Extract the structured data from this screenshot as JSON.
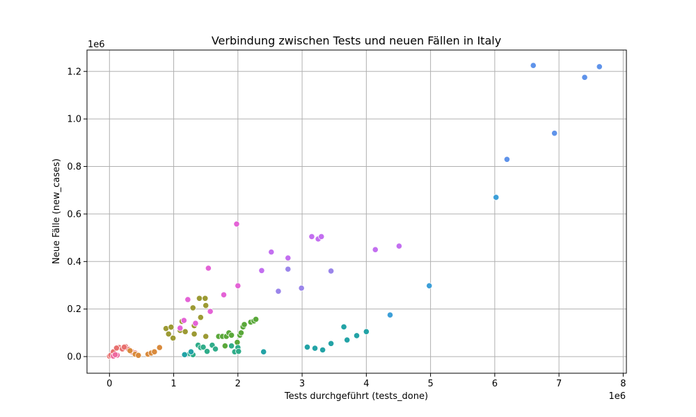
{
  "chart_data": {
    "type": "scatter",
    "title": "Verbindung zwischen Tests und neuen Fällen in Italy",
    "xlabel": "Tests durchgeführt (tests_done)",
    "ylabel": "Neue Fälle (new_cases)",
    "x_scale_label": "1e6",
    "y_scale_label": "1e6",
    "xlim": [
      -350000,
      8050000
    ],
    "ylim": [
      -70000,
      1290000
    ],
    "x_ticks": [
      0,
      1000000,
      2000000,
      3000000,
      4000000,
      5000000,
      6000000,
      7000000,
      8000000
    ],
    "x_tick_labels": [
      "0",
      "1",
      "2",
      "3",
      "4",
      "5",
      "6",
      "7",
      "8"
    ],
    "y_ticks": [
      0,
      200000,
      400000,
      600000,
      800000,
      1000000,
      1200000
    ],
    "y_tick_labels": [
      "0.0",
      "0.2",
      "0.4",
      "0.6",
      "0.8",
      "1.0",
      "1.2"
    ],
    "grid": true,
    "legend": false,
    "series": [
      {
        "color": "#e8706f",
        "points": [
          [
            0,
            2000
          ],
          [
            20000,
            6000
          ],
          [
            60000,
            20000
          ],
          [
            100000,
            8000
          ],
          [
            150000,
            38000
          ],
          [
            200000,
            32000
          ],
          [
            250000,
            42000
          ],
          [
            300000,
            30000
          ],
          [
            350000,
            20000
          ],
          [
            400000,
            15000
          ],
          [
            110000,
            36000
          ],
          [
            230000,
            40000
          ]
        ]
      },
      {
        "color": "#d98a3c",
        "points": [
          [
            320000,
            25000
          ],
          [
            400000,
            10000
          ],
          [
            450000,
            5000
          ],
          [
            600000,
            10000
          ],
          [
            650000,
            15000
          ],
          [
            700000,
            20000
          ],
          [
            780000,
            38000
          ]
        ]
      },
      {
        "color": "#9c9a34",
        "points": [
          [
            880000,
            118000
          ],
          [
            920000,
            95000
          ],
          [
            960000,
            124000
          ],
          [
            990000,
            78000
          ],
          [
            1100000,
            110000
          ],
          [
            1130000,
            148000
          ],
          [
            1180000,
            105000
          ],
          [
            1300000,
            205000
          ],
          [
            1320000,
            130000
          ],
          [
            1320000,
            95000
          ],
          [
            1420000,
            165000
          ],
          [
            1500000,
            215000
          ],
          [
            1500000,
            85000
          ],
          [
            1400000,
            245000
          ],
          [
            1490000,
            245000
          ]
        ]
      },
      {
        "color": "#5aa83a",
        "points": [
          [
            1700000,
            85000
          ],
          [
            1760000,
            85000
          ],
          [
            1800000,
            45000
          ],
          [
            1820000,
            85000
          ],
          [
            1860000,
            100000
          ],
          [
            1900000,
            90000
          ],
          [
            1990000,
            60000
          ],
          [
            2030000,
            90000
          ],
          [
            2050000,
            100000
          ],
          [
            2080000,
            125000
          ],
          [
            2100000,
            135000
          ],
          [
            2200000,
            145000
          ],
          [
            2250000,
            150000
          ],
          [
            2280000,
            157000
          ]
        ]
      },
      {
        "color": "#30ad8a",
        "points": [
          [
            1380000,
            48000
          ],
          [
            1420000,
            38000
          ],
          [
            1460000,
            40000
          ],
          [
            1520000,
            22000
          ],
          [
            1600000,
            48000
          ],
          [
            1650000,
            32000
          ],
          [
            1900000,
            45000
          ],
          [
            1950000,
            20000
          ],
          [
            2000000,
            38000
          ],
          [
            2010000,
            22000
          ],
          [
            1250000,
            12000
          ],
          [
            1300000,
            8000
          ]
        ]
      },
      {
        "color": "#23a3a6",
        "points": [
          [
            1170000,
            8000
          ],
          [
            1270000,
            20000
          ],
          [
            2400000,
            20000
          ],
          [
            3080000,
            40000
          ],
          [
            3200000,
            35000
          ],
          [
            3320000,
            28000
          ],
          [
            3450000,
            55000
          ],
          [
            3650000,
            125000
          ],
          [
            3700000,
            70000
          ],
          [
            3850000,
            88000
          ],
          [
            4000000,
            105000
          ]
        ]
      },
      {
        "color": "#3d9fd8",
        "points": [
          [
            4370000,
            175000
          ],
          [
            4980000,
            298000
          ],
          [
            6020000,
            670000
          ]
        ]
      },
      {
        "color": "#5f93ea",
        "points": [
          [
            6190000,
            830000
          ],
          [
            6600000,
            1225000
          ],
          [
            6930000,
            940000
          ],
          [
            7400000,
            1175000
          ],
          [
            7630000,
            1220000
          ]
        ]
      },
      {
        "color": "#9a85ea",
        "points": [
          [
            2630000,
            275000
          ],
          [
            2780000,
            368000
          ],
          [
            2990000,
            288000
          ],
          [
            3450000,
            360000
          ]
        ]
      },
      {
        "color": "#c36ff0",
        "points": [
          [
            2370000,
            362000
          ],
          [
            2520000,
            440000
          ],
          [
            2780000,
            415000
          ],
          [
            3150000,
            505000
          ],
          [
            3250000,
            495000
          ],
          [
            3300000,
            505000
          ],
          [
            4140000,
            450000
          ],
          [
            4510000,
            465000
          ]
        ]
      },
      {
        "color": "#e463d6",
        "points": [
          [
            1220000,
            240000
          ],
          [
            1340000,
            140000
          ],
          [
            1540000,
            372000
          ],
          [
            1570000,
            190000
          ],
          [
            1780000,
            260000
          ],
          [
            1980000,
            558000
          ],
          [
            2000000,
            298000
          ],
          [
            1100000,
            120000
          ],
          [
            1160000,
            152000
          ]
        ]
      },
      {
        "color": "#ee6aa0",
        "points": [
          [
            60000,
            2000
          ],
          [
            120000,
            6000
          ],
          [
            90000,
            8000
          ]
        ]
      }
    ]
  }
}
